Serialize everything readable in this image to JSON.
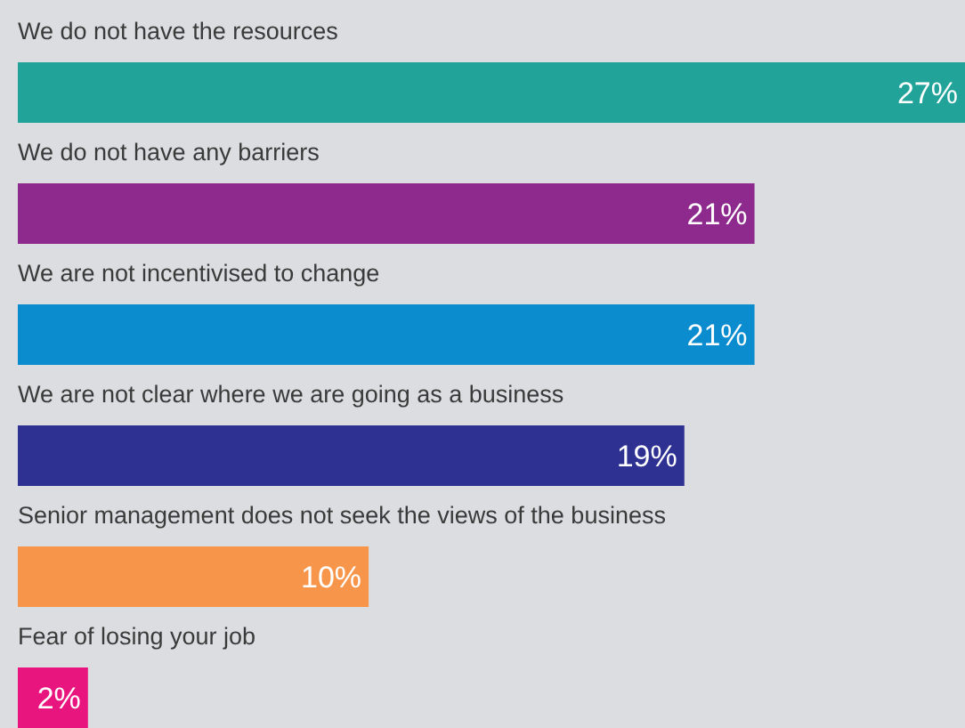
{
  "chart_data": {
    "type": "bar",
    "orientation": "horizontal",
    "categories": [
      "We do not have the resources",
      "We do not have any barriers",
      "We are not incentivised to change",
      "We are not clear where we are going as a business",
      "Senior management does not seek the views of the business",
      "Fear of losing your job"
    ],
    "values": [
      27,
      21,
      21,
      19,
      10,
      2
    ],
    "colors": [
      "#21a39a",
      "#8e2a8e",
      "#0a8ccf",
      "#2e3192",
      "#f7964a",
      "#e8157f"
    ],
    "value_labels": [
      "27%",
      "21%",
      "21%",
      "19%",
      "10%",
      "2%"
    ]
  }
}
